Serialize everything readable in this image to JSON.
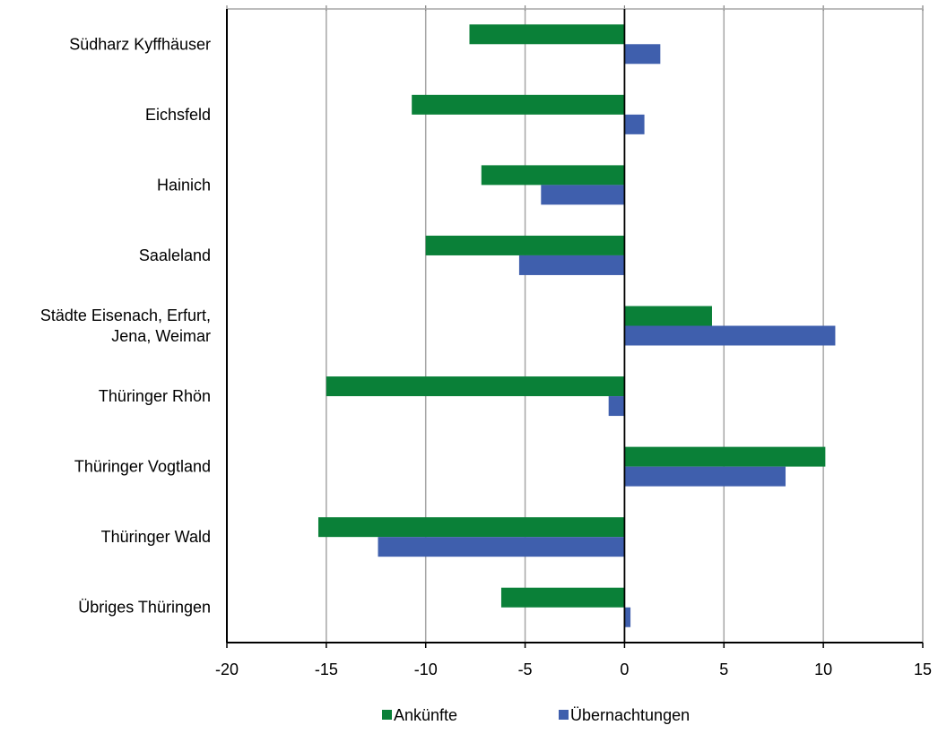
{
  "chart_data": {
    "type": "bar",
    "orientation": "horizontal",
    "categories": [
      [
        "Südharz Kyffhäuser"
      ],
      [
        "Eichsfeld"
      ],
      [
        "Hainich"
      ],
      [
        "Saaleland"
      ],
      [
        "Städte Eisenach, Erfurt,",
        "Jena, Weimar"
      ],
      [
        "Thüringer Rhön"
      ],
      [
        "Thüringer Vogtland"
      ],
      [
        "Thüringer Wald"
      ],
      [
        "Übriges Thüringen"
      ]
    ],
    "series": [
      {
        "name": "Ankünfte",
        "color": "#0a8038",
        "values": [
          -7.8,
          -10.7,
          -7.2,
          -10.0,
          4.4,
          -15.0,
          10.1,
          -15.4,
          -6.2
        ]
      },
      {
        "name": "Übernachtungen",
        "color": "#3f5fad",
        "values": [
          1.8,
          1.0,
          -4.2,
          -5.3,
          10.6,
          -0.8,
          8.1,
          -12.4,
          0.3
        ]
      }
    ],
    "xlim": [
      -20,
      15
    ],
    "xticks": [
      "-20",
      "-15",
      "-10",
      "-5",
      "0",
      "5",
      "10",
      "15"
    ],
    "grid": true,
    "legend": "bottom-center",
    "title": "",
    "xlabel": "",
    "ylabel": ""
  }
}
